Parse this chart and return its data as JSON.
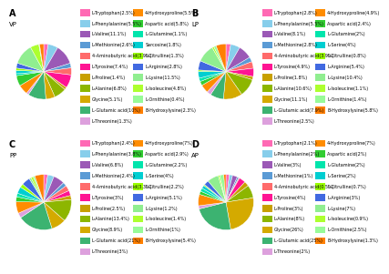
{
  "panels": [
    {
      "label": "A",
      "subtitle": "VP",
      "slices": [
        {
          "name": "L-Tryptophan(2.5%)",
          "value": 2.5
        },
        {
          "name": "L-Phenylalanine(5.5%)",
          "value": 5.5
        },
        {
          "name": "L-Valine(11.1%)",
          "value": 11.1
        },
        {
          "name": "L-Methionine(2.6%)",
          "value": 2.6
        },
        {
          "name": "4-Aminobutyric acid(3.9%)",
          "value": 3.9
        },
        {
          "name": "L-Tyrosine(7.4%)",
          "value": 7.4
        },
        {
          "name": "L-Proline(1.4%)",
          "value": 1.4
        },
        {
          "name": "L-Alanine(6.8%)",
          "value": 6.8
        },
        {
          "name": "Glycine(5.1%)",
          "value": 5.1
        },
        {
          "name": "L-Glutamic acid(10%)",
          "value": 10.0
        },
        {
          "name": "L-Threonine(1.3%)",
          "value": 1.3
        },
        {
          "name": "4-Hydroxyproline(5.5%)",
          "value": 5.5
        },
        {
          "name": "Aspartic acid(5.8%)",
          "value": 5.8
        },
        {
          "name": "L-Glutamine(1.1%)",
          "value": 1.1
        },
        {
          "name": "Sarcosine(1.8%)",
          "value": 1.8
        },
        {
          "name": "L-Citrulline(1.3%)",
          "value": 1.3
        },
        {
          "name": "L-Arginine(2.8%)",
          "value": 2.8
        },
        {
          "name": "L-Lysine(11.5%)",
          "value": 11.5
        },
        {
          "name": "L-Isoleucine(4.8%)",
          "value": 4.8
        },
        {
          "name": "L-Ornithine(0.4%)",
          "value": 0.4
        },
        {
          "name": "B-Hydroxylysine(2.3%)",
          "value": 2.3
        }
      ]
    },
    {
      "label": "B",
      "subtitle": "LP",
      "slices": [
        {
          "name": "L-Tryptophan(2.8%)",
          "value": 2.8
        },
        {
          "name": "L-Phenylalanine(5.5%)",
          "value": 5.5
        },
        {
          "name": "L-Valine(8.1%)",
          "value": 8.1
        },
        {
          "name": "L-Methionine(2.8%)",
          "value": 2.8
        },
        {
          "name": "4-Aminobutyric acid(3.9%)",
          "value": 3.9
        },
        {
          "name": "L-Tyrosine(4.9%)",
          "value": 4.9
        },
        {
          "name": "L-Proline(1.8%)",
          "value": 1.8
        },
        {
          "name": "L-Alanine(10.6%)",
          "value": 10.6
        },
        {
          "name": "Glycine(11.1%)",
          "value": 11.1
        },
        {
          "name": "L-Glutamic acid(7.9%)",
          "value": 7.9
        },
        {
          "name": "L-Threonine(2.5%)",
          "value": 2.5
        },
        {
          "name": "4-Hydroxyproline(4.9%)",
          "value": 4.9
        },
        {
          "name": "Aspartic acid(2.4%)",
          "value": 2.4
        },
        {
          "name": "L-Glutamine(2%)",
          "value": 2.0
        },
        {
          "name": "L-Serine(4%)",
          "value": 4.0
        },
        {
          "name": "L-Citrulline(0.8%)",
          "value": 0.8
        },
        {
          "name": "L-Arginine(5.4%)",
          "value": 5.4
        },
        {
          "name": "L-Lysine(10.4%)",
          "value": 10.4
        },
        {
          "name": "L-Isoleucine(1.1%)",
          "value": 1.1
        },
        {
          "name": "L-Ornithine(1.4%)",
          "value": 1.4
        },
        {
          "name": "B-Hydroxylysine(5.8%)",
          "value": 5.8
        }
      ]
    },
    {
      "label": "C",
      "subtitle": "PP",
      "slices": [
        {
          "name": "L-Tryptophan(2.4%)",
          "value": 2.4
        },
        {
          "name": "L-Phenylalanine(3.8%)",
          "value": 3.8
        },
        {
          "name": "L-Valine(6.8%)",
          "value": 6.8
        },
        {
          "name": "L-Methionine(2.4%)",
          "value": 2.4
        },
        {
          "name": "4-Aminobutyric acid(3.3%)",
          "value": 3.3
        },
        {
          "name": "L-Tyrosine(3%)",
          "value": 3.0
        },
        {
          "name": "L-Proline(2.5%)",
          "value": 2.5
        },
        {
          "name": "L-Alanine(13.4%)",
          "value": 13.4
        },
        {
          "name": "Glycine(8.9%)",
          "value": 8.9
        },
        {
          "name": "L-Glutamic acid(21%)",
          "value": 21.0
        },
        {
          "name": "L-Threonine(3%)",
          "value": 3.0
        },
        {
          "name": "4-Hydroxyproline(7%)",
          "value": 7.0
        },
        {
          "name": "Aspartic acid(2.9%)",
          "value": 2.9
        },
        {
          "name": "L-Glutamine(2.2%)",
          "value": 2.2
        },
        {
          "name": "L-Serine(4%)",
          "value": 4.0
        },
        {
          "name": "L-Citrulline(2.2%)",
          "value": 2.2
        },
        {
          "name": "L-Arginine(5.1%)",
          "value": 5.1
        },
        {
          "name": "L-Lysine(1.2%)",
          "value": 1.2
        },
        {
          "name": "L-Isoleucine(1.4%)",
          "value": 1.4
        },
        {
          "name": "L-Ornithine(1%)",
          "value": 1.0
        },
        {
          "name": "B-Hydroxylysine(5.4%)",
          "value": 5.4
        }
      ]
    },
    {
      "label": "D",
      "subtitle": "AP",
      "slices": [
        {
          "name": "L-Tryptophan(2.1%)",
          "value": 2.1
        },
        {
          "name": "L-Phenylalanine(2%)",
          "value": 2.0
        },
        {
          "name": "L-Valine(3%)",
          "value": 3.0
        },
        {
          "name": "L-Methionine(1%)",
          "value": 1.0
        },
        {
          "name": "4-Aminobutyric acid(0.5%)",
          "value": 0.5
        },
        {
          "name": "L-Tyrosine(4%)",
          "value": 4.0
        },
        {
          "name": "L-Proline(3%)",
          "value": 3.0
        },
        {
          "name": "L-Alanine(8%)",
          "value": 8.0
        },
        {
          "name": "Glycine(26%)",
          "value": 26.0
        },
        {
          "name": "L-Glutamic acid(25%)",
          "value": 25.0
        },
        {
          "name": "L-Threonine(2%)",
          "value": 2.0
        },
        {
          "name": "4-Hydroxyproline(7%)",
          "value": 7.0
        },
        {
          "name": "Aspartic acid(2%)",
          "value": 2.0
        },
        {
          "name": "L-Glutamine(2%)",
          "value": 2.0
        },
        {
          "name": "L-Serine(2%)",
          "value": 2.0
        },
        {
          "name": "L-Citrulline(0.7%)",
          "value": 0.7
        },
        {
          "name": "L-Arginine(3%)",
          "value": 3.0
        },
        {
          "name": "L-Lysine(7%)",
          "value": 7.0
        },
        {
          "name": "L-Isoleucine(0.9%)",
          "value": 0.9
        },
        {
          "name": "L-Ornithine(2.5%)",
          "value": 2.5
        },
        {
          "name": "B-Hydroxylysine(1.3%)",
          "value": 1.3
        }
      ]
    }
  ],
  "colors": [
    "#FF69B4",
    "#87CEEB",
    "#9B59B6",
    "#5B9BD5",
    "#FF6B6B",
    "#FF1493",
    "#C8A000",
    "#8DB600",
    "#D4AA00",
    "#3CB371",
    "#DDA0DD",
    "#FF8C00",
    "#32CD32",
    "#00E5AC",
    "#00CED1",
    "#9AFF00",
    "#4169E1",
    "#90EE90",
    "#ADFF2F",
    "#98FB98",
    "#FF7F00"
  ],
  "background_color": "#ffffff"
}
